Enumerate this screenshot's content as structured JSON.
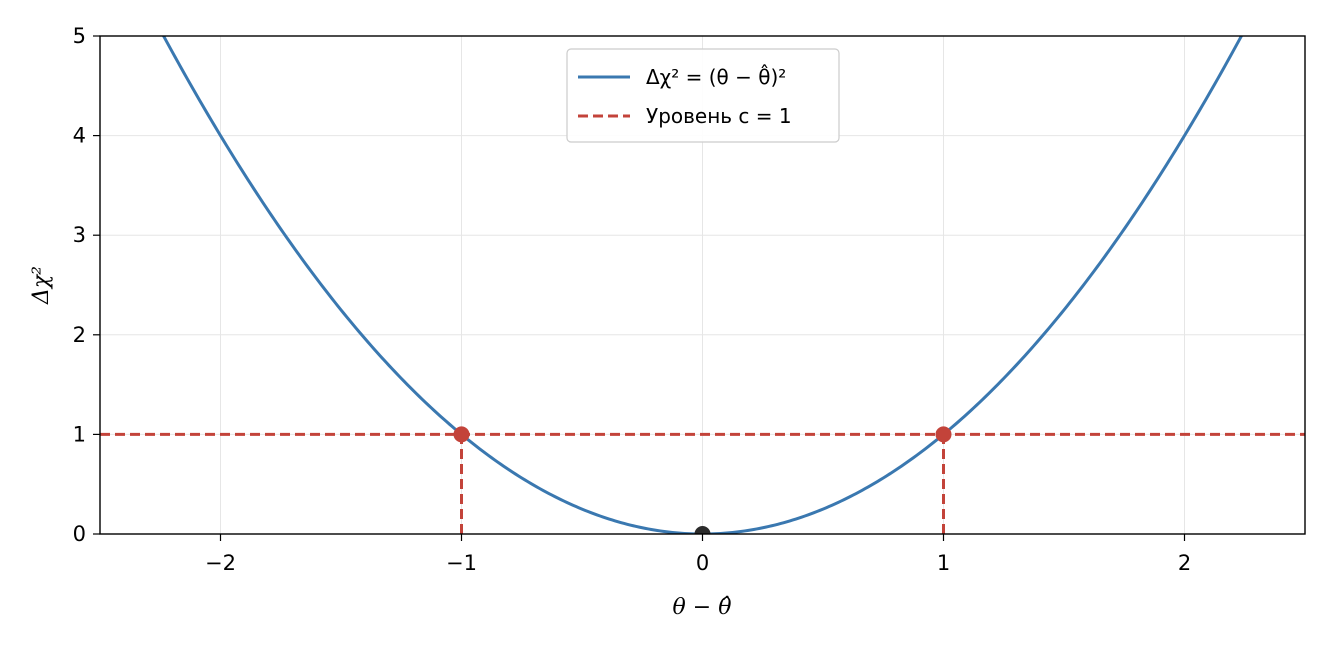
{
  "chart_data": {
    "type": "line",
    "xlabel": "θ − θ̂",
    "ylabel": "Δχ²",
    "xlim": [
      -2.5,
      2.5
    ],
    "ylim": [
      0,
      5
    ],
    "xticks": [
      -2,
      -1,
      0,
      1,
      2
    ],
    "xtick_labels": [
      "−2",
      "−1",
      "0",
      "1",
      "2"
    ],
    "yticks": [
      0,
      1,
      2,
      3,
      4,
      5
    ],
    "ytick_labels": [
      "0",
      "1",
      "2",
      "3",
      "4",
      "5"
    ],
    "grid": true,
    "legend_position": "top-center",
    "series": [
      {
        "name": "Δχ² = (θ − θ̂)²",
        "kind": "curve",
        "function": "x^2",
        "x": [
          -2.25,
          -2,
          -1.5,
          -1,
          -0.5,
          0,
          0.5,
          1,
          1.5,
          2,
          2.25
        ],
        "y": [
          5.0625,
          4,
          2.25,
          1,
          0.25,
          0,
          0.25,
          1,
          2.25,
          4,
          5.0625
        ],
        "color": "#3a78b0",
        "style": "solid"
      },
      {
        "name": "Уровень c = 1",
        "kind": "hline",
        "y": 1,
        "color": "#c3433a",
        "style": "dashed"
      }
    ],
    "vertical_dashed_lines": [
      {
        "x": -1,
        "y_from": 0,
        "y_to": 1,
        "color": "#c3433a"
      },
      {
        "x": 1,
        "y_from": 0,
        "y_to": 1,
        "color": "#c3433a"
      }
    ],
    "points": [
      {
        "x": -1,
        "y": 1,
        "color": "#c3433a"
      },
      {
        "x": 1,
        "y": 1,
        "color": "#c3433a"
      },
      {
        "x": 0,
        "y": 0,
        "color": "#2b2b2b"
      }
    ]
  }
}
